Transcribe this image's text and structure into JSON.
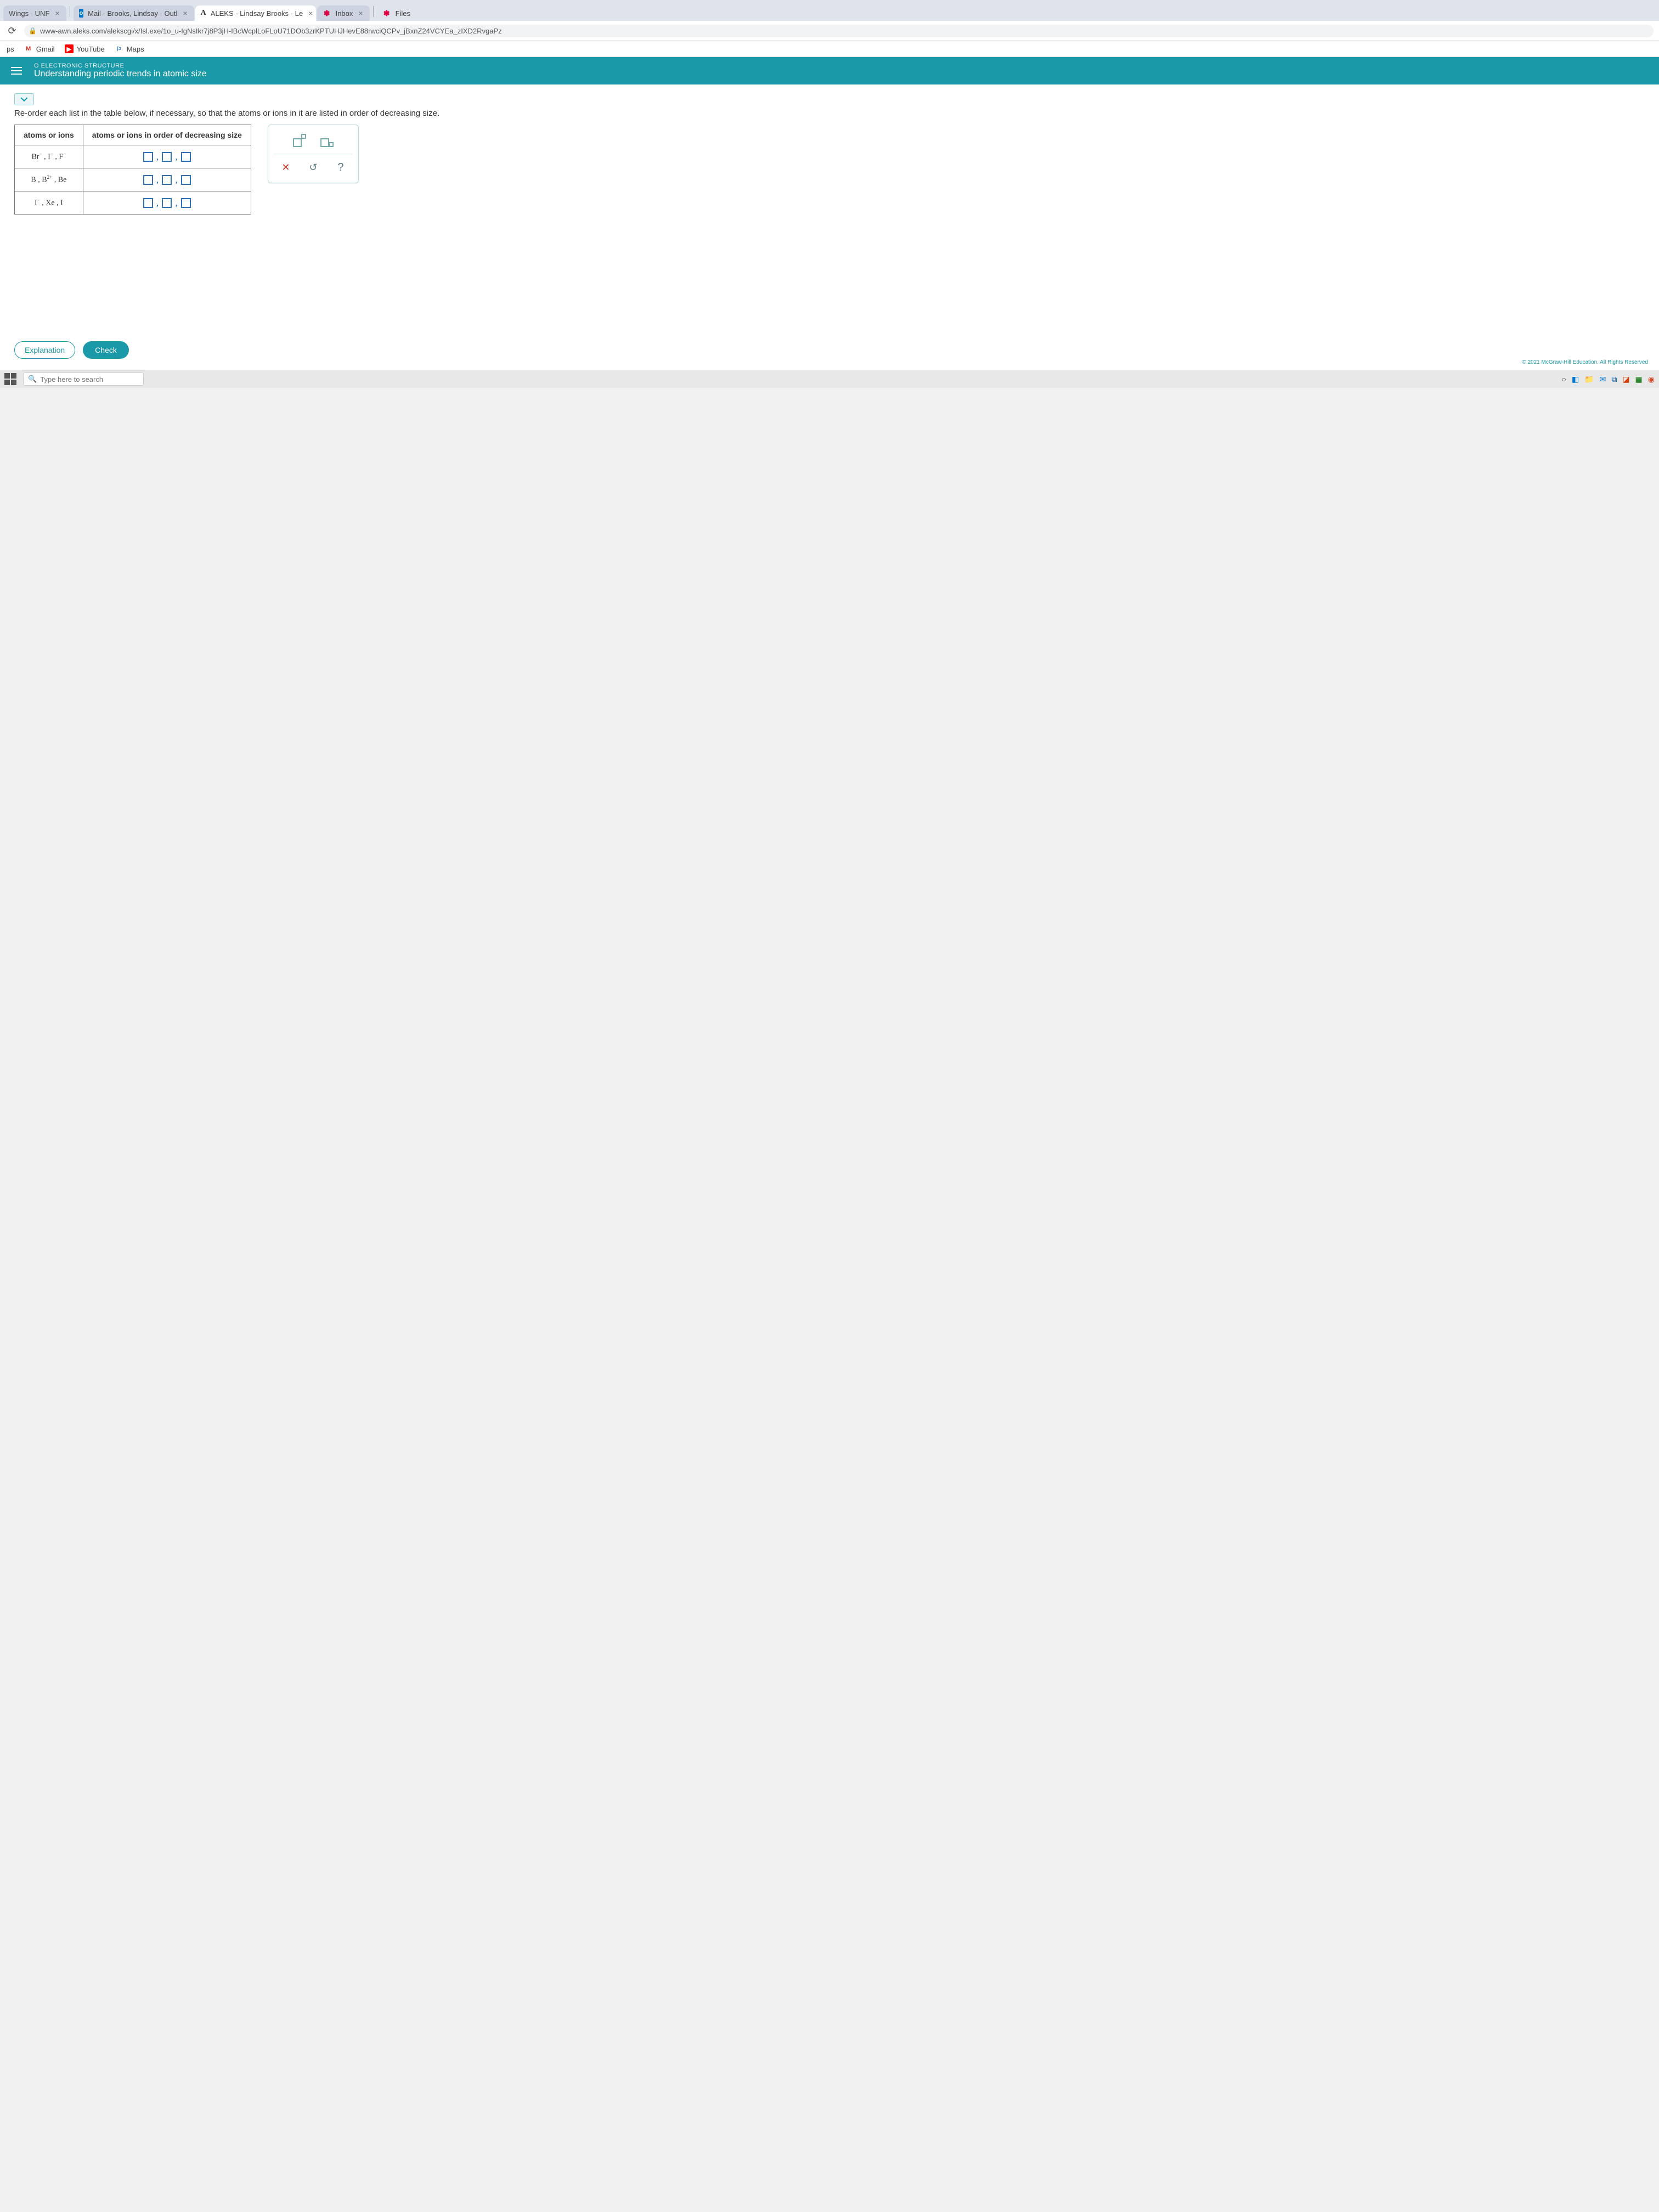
{
  "tabs": [
    {
      "label": "Wings - UNF"
    },
    {
      "label": "Mail - Brooks, Lindsay - Outl"
    },
    {
      "label": "ALEKS - Lindsay Brooks - Le"
    },
    {
      "label": "Inbox"
    },
    {
      "label": "Files"
    }
  ],
  "url": "www-awn.aleks.com/alekscgi/x/Isl.exe/1o_u-IgNsIkr7j8P3jH-IBcWcplLoFLoU71DOb3zrKPTUHJHevE88rwciQCPv_jBxnZ24VCYEa_zIXD2RvgaPz",
  "bookmarks": {
    "apps": "ps",
    "gmail": "Gmail",
    "youtube": "YouTube",
    "maps": "Maps"
  },
  "header": {
    "eyebrow": "O ELECTRONIC STRUCTURE",
    "title": "Understanding periodic trends in atomic size"
  },
  "instruction": "Re-order each list in the table below, if necessary, so that the atoms or ions in it are listed in order of decreasing size.",
  "table": {
    "col1": "atoms or ions",
    "col2": "atoms or ions in order of decreasing size",
    "rows": [
      {
        "atoms_html": "Br<sup>−</sup> , I<sup>−</sup> , F<sup>−</sup>"
      },
      {
        "atoms_html": "B , B<sup>2+</sup> , Be"
      },
      {
        "atoms_html": "I<sup>−</sup> , Xe , I"
      }
    ]
  },
  "buttons": {
    "explanation": "Explanation",
    "check": "Check"
  },
  "copyright": "© 2021 McGraw-Hill Education. All Rights Reserved",
  "taskbar": {
    "search_placeholder": "Type here to search"
  }
}
